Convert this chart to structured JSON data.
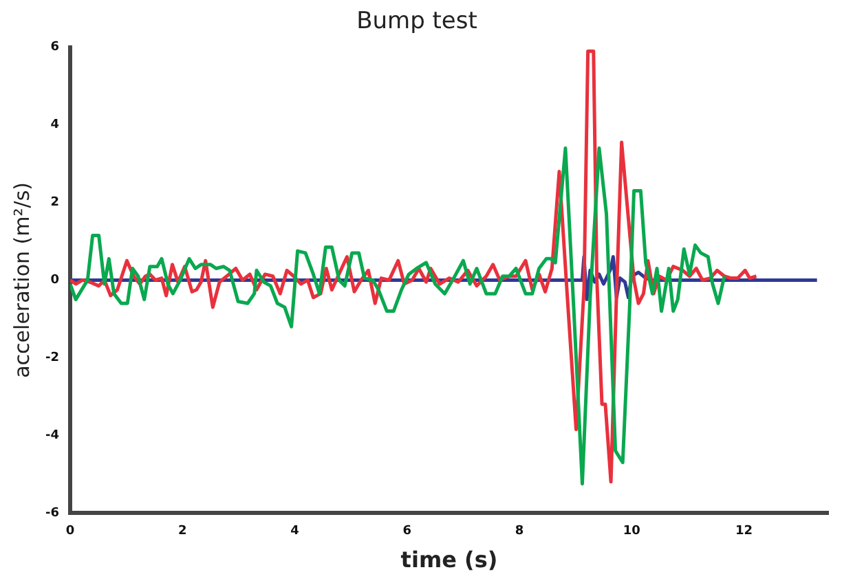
{
  "chart_data": {
    "type": "line",
    "title": "Bump test",
    "xlabel": "time (s)",
    "ylabel": "acceleration (m²/s)",
    "xlim": [
      0,
      13.5
    ],
    "xticks": [
      0,
      2,
      4,
      6,
      8,
      10,
      12
    ],
    "ylim": [
      -6,
      6
    ],
    "yticks": [
      -6,
      -4,
      -2,
      0,
      2,
      4,
      6
    ],
    "grid": false,
    "legend": false,
    "marker": "none",
    "line_style": "solid",
    "series": [
      {
        "color": "#0aa84f",
        "x": [
          0,
          0.1,
          0.31,
          0.4,
          0.51,
          0.61,
          0.69,
          0.78,
          0.91,
          1.02,
          1.11,
          1.21,
          1.32,
          1.42,
          1.55,
          1.63,
          1.74,
          1.83,
          1.96,
          2.12,
          2.23,
          2.33,
          2.5,
          2.6,
          2.73,
          2.84,
          2.99,
          3.16,
          3.28,
          3.32,
          3.45,
          3.57,
          3.69,
          3.82,
          3.94,
          4.05,
          4.19,
          4.33,
          4.44,
          4.55,
          4.66,
          4.79,
          4.89,
          5.02,
          5.14,
          5.24,
          5.39,
          5.49,
          5.64,
          5.76,
          5.9,
          6.03,
          6.17,
          6.34,
          6.5,
          6.67,
          6.83,
          7.0,
          7.12,
          7.24,
          7.41,
          7.57,
          7.7,
          7.82,
          7.94,
          8.11,
          8.23,
          8.35,
          8.48,
          8.56,
          8.64,
          8.82,
          8.97,
          9.12,
          9.26,
          9.42,
          9.55,
          9.71,
          9.84,
          9.96,
          10.04,
          10.16,
          10.25,
          10.37,
          10.45,
          10.53,
          10.66,
          10.74,
          10.82,
          10.93,
          11.03,
          11.13,
          11.23,
          11.36,
          11.44,
          11.54,
          11.65
        ],
        "values": [
          -0.1,
          -0.5,
          0,
          1.15,
          1.15,
          -0.1,
          0.55,
          -0.35,
          -0.6,
          -0.6,
          0.3,
          0.1,
          -0.5,
          0.35,
          0.35,
          0.55,
          -0.1,
          -0.35,
          0,
          0.55,
          0.3,
          0.4,
          0.4,
          0.3,
          0.35,
          0.25,
          -0.55,
          -0.6,
          -0.35,
          0.25,
          -0.05,
          -0.15,
          -0.6,
          -0.7,
          -1.2,
          0.75,
          0.7,
          0.15,
          -0.35,
          0.85,
          0.85,
          0,
          -0.15,
          0.7,
          0.7,
          0.05,
          0,
          -0.25,
          -0.8,
          -0.8,
          -0.25,
          0.15,
          0.3,
          0.45,
          -0.1,
          -0.35,
          0.05,
          0.5,
          -0.1,
          0.3,
          -0.35,
          -0.35,
          0.1,
          0.1,
          0.3,
          -0.35,
          -0.35,
          0.3,
          0.55,
          0.55,
          0.45,
          3.4,
          -0.8,
          -5.25,
          -0.45,
          3.4,
          1.7,
          -4.4,
          -4.7,
          -0.8,
          2.3,
          2.3,
          0.45,
          -0.35,
          0.3,
          -0.8,
          0.3,
          -0.8,
          -0.5,
          0.8,
          0.15,
          0.9,
          0.7,
          0.6,
          -0.1,
          -0.6,
          0.1
        ]
      },
      {
        "color": "#e8313c",
        "x": [
          0,
          0.1,
          0.22,
          0.35,
          0.51,
          0.61,
          0.72,
          0.84,
          1.01,
          1.13,
          1.24,
          1.34,
          1.42,
          1.52,
          1.63,
          1.71,
          1.82,
          1.92,
          2.04,
          2.17,
          2.25,
          2.33,
          2.41,
          2.54,
          2.66,
          2.83,
          2.95,
          3.07,
          3.2,
          3.32,
          3.47,
          3.61,
          3.74,
          3.86,
          3.98,
          4.11,
          4.23,
          4.33,
          4.46,
          4.56,
          4.66,
          4.77,
          4.93,
          5.06,
          5.18,
          5.31,
          5.43,
          5.54,
          5.68,
          5.84,
          5.95,
          6.09,
          6.21,
          6.34,
          6.42,
          6.58,
          6.75,
          6.91,
          7.08,
          7.24,
          7.41,
          7.53,
          7.65,
          7.82,
          7.94,
          8.11,
          8.23,
          8.35,
          8.46,
          8.58,
          8.71,
          8.85,
          9.01,
          9.15,
          9.22,
          9.32,
          9.38,
          9.47,
          9.53,
          9.63,
          9.73,
          9.82,
          9.94,
          10.04,
          10.12,
          10.21,
          10.29,
          10.39,
          10.49,
          10.62,
          10.74,
          10.91,
          11.03,
          11.15,
          11.26,
          11.4,
          11.52,
          11.65,
          11.77,
          11.89,
          12.02,
          12.1,
          12.22
        ],
        "values": [
          0,
          -0.1,
          0,
          -0.05,
          -0.15,
          0,
          -0.4,
          -0.25,
          0.5,
          0.1,
          -0.1,
          0.1,
          0.15,
          0,
          0.05,
          -0.4,
          0.4,
          -0.05,
          0.35,
          -0.3,
          -0.25,
          -0.05,
          0.5,
          -0.7,
          -0.05,
          0.15,
          0.3,
          0,
          0.15,
          -0.25,
          0.15,
          0.1,
          -0.35,
          0.25,
          0.1,
          -0.1,
          0,
          -0.45,
          -0.35,
          0.3,
          -0.25,
          0.1,
          0.6,
          -0.3,
          0,
          0.25,
          -0.6,
          0.05,
          0,
          0.5,
          -0.1,
          0,
          0.3,
          -0.05,
          0.3,
          -0.1,
          0.05,
          -0.05,
          0.25,
          -0.15,
          0.1,
          0.4,
          0,
          0.1,
          0.1,
          0.5,
          -0.25,
          0.15,
          -0.3,
          0.3,
          2.8,
          -0.35,
          -3.85,
          -0.25,
          5.9,
          5.9,
          0,
          -3.2,
          -3.2,
          -5.2,
          -0.35,
          3.55,
          1.6,
          0,
          -0.6,
          -0.35,
          0.5,
          -0.35,
          0.1,
          0,
          0.35,
          0.25,
          0.1,
          0.3,
          0,
          0.05,
          0.25,
          0.1,
          0.05,
          0.05,
          0.25,
          0.05,
          0.1
        ]
      },
      {
        "color": "#2e3a94",
        "x": [
          0,
          9.12,
          9.15,
          9.2,
          9.26,
          9.34,
          9.42,
          9.5,
          9.63,
          9.67,
          9.73,
          9.79,
          9.88,
          9.94,
          10.0,
          10.12,
          10.25,
          10.37,
          13.3
        ],
        "values": [
          0,
          0,
          0.6,
          -0.5,
          0.25,
          -0.05,
          0.15,
          -0.1,
          0.3,
          0.6,
          -0.45,
          0.05,
          -0.05,
          -0.45,
          0.1,
          0.2,
          0.05,
          0,
          0
        ]
      }
    ]
  }
}
